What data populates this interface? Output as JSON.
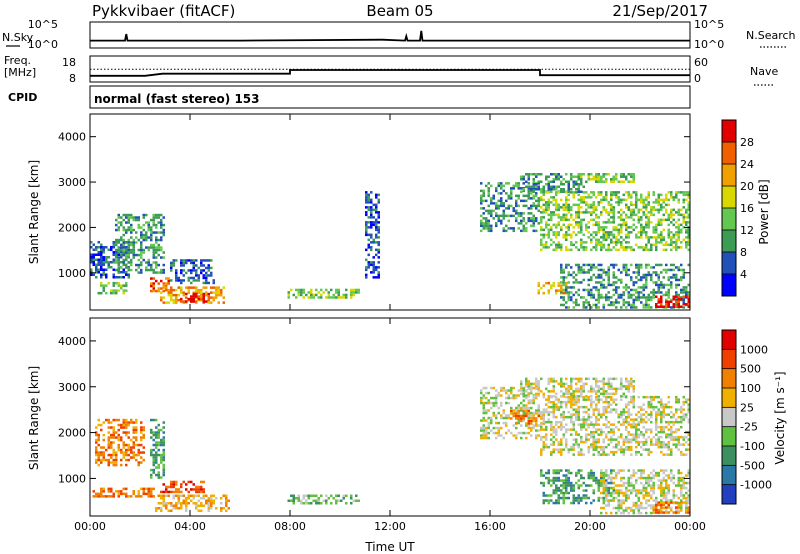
{
  "header": {
    "station": "Pykkvibaer (fitACF)",
    "beam": "Beam 05",
    "date": "21/Sep/2017"
  },
  "top_panels": {
    "nsky_label": "N.Sky",
    "nsky_ticks": [
      "10^5",
      "10^0"
    ],
    "nsearch_label": "N.Search",
    "nsearch_ticks": [
      "10^5",
      "10^0"
    ],
    "freq_label": "Freq.",
    "freq_unit": "[MHz]",
    "freq_ticks": [
      "18",
      "8"
    ],
    "nave_label": "Nave",
    "nave_ticks": [
      "60",
      "0"
    ],
    "cpid_label": "CPID",
    "cpid_text": "normal (fast stereo) 153"
  },
  "chart_data": [
    {
      "type": "line",
      "title": "",
      "panel": "noise",
      "x_unit": "hours UT",
      "series": [
        {
          "name": "N.Sky",
          "x": [
            0,
            1.4,
            1.45,
            1.5,
            6,
            11.7,
            12.6,
            12.65,
            12.7,
            13.2,
            13.25,
            13.3,
            24
          ],
          "values": [
            1.0,
            1.0,
            2.5,
            1.0,
            1.0,
            1.2,
            1.0,
            2.0,
            1.0,
            1.0,
            3.2,
            1.0,
            1.0
          ]
        }
      ]
    },
    {
      "type": "line",
      "title": "",
      "panel": "frequency",
      "x_unit": "hours UT",
      "series": [
        {
          "name": "Freq.",
          "x": [
            0,
            2.2,
            2.9,
            8.0,
            8.0,
            18.0,
            18.0,
            24
          ],
          "values": [
            10.4,
            10.4,
            11.2,
            11.2,
            12.6,
            12.6,
            10.6,
            10.6
          ]
        }
      ],
      "reference_lines": [
        {
          "name": "Nave",
          "value": 12.9
        }
      ]
    },
    {
      "type": "heatmap",
      "title": "",
      "panel": "power",
      "xlabel": "",
      "ylabel": "Slant Range [km]",
      "x_ticks": [
        "00:00",
        "04:00",
        "08:00",
        "12:00",
        "16:00",
        "20:00",
        "00:00"
      ],
      "y_ticks": [
        "1000",
        "2000",
        "3000",
        "4000"
      ],
      "xlim": [
        0,
        24
      ],
      "ylim": [
        180,
        4500
      ],
      "colorbar": {
        "label": "Power [dB]",
        "ticks": [
          "4",
          "8",
          "12",
          "16",
          "20",
          "24",
          "28"
        ],
        "colors": [
          "#0000ff",
          "#2050b8",
          "#3c9c54",
          "#64c850",
          "#d8d800",
          "#f0a000",
          "#f06000",
          "#e00000"
        ]
      },
      "regions": [
        {
          "x": [
            0.0,
            1.6
          ],
          "range": [
            900,
            1700
          ],
          "level": 1
        },
        {
          "x": [
            0.2,
            1.5
          ],
          "range": [
            550,
            800
          ],
          "level": 3
        },
        {
          "x": [
            1.0,
            3.0
          ],
          "range": [
            1000,
            2300
          ],
          "level": 2
        },
        {
          "x": [
            2.4,
            3.2
          ],
          "range": [
            600,
            900
          ],
          "level": 6
        },
        {
          "x": [
            2.8,
            5.4
          ],
          "range": [
            350,
            700
          ],
          "level": 5
        },
        {
          "x": [
            3.6,
            4.8
          ],
          "range": [
            380,
            560
          ],
          "level": 7
        },
        {
          "x": [
            3.2,
            5.0
          ],
          "range": [
            800,
            1300
          ],
          "level": 1
        },
        {
          "x": [
            7.9,
            10.8
          ],
          "range": [
            450,
            650
          ],
          "level": 3
        },
        {
          "x": [
            11.0,
            11.6
          ],
          "range": [
            900,
            2800
          ],
          "level": 1
        },
        {
          "x": [
            15.6,
            18.0
          ],
          "range": [
            1900,
            3000
          ],
          "level": 2
        },
        {
          "x": [
            17.2,
            19.8
          ],
          "range": [
            2800,
            3200
          ],
          "level": 2
        },
        {
          "x": [
            19.6,
            21.8
          ],
          "range": [
            3000,
            3200
          ],
          "level": 3
        },
        {
          "x": [
            18.0,
            24.0
          ],
          "range": [
            1500,
            2800
          ],
          "level": 3
        },
        {
          "x": [
            17.9,
            19.2
          ],
          "range": [
            550,
            800
          ],
          "level": 5
        },
        {
          "x": [
            18.8,
            24.0
          ],
          "range": [
            250,
            1200
          ],
          "level": 2
        },
        {
          "x": [
            22.6,
            24.0
          ],
          "range": [
            250,
            500
          ],
          "level": 7
        }
      ]
    },
    {
      "type": "heatmap",
      "title": "",
      "panel": "velocity",
      "xlabel": "Time UT",
      "ylabel": "Slant Range [km]",
      "x_ticks": [
        "00:00",
        "04:00",
        "08:00",
        "12:00",
        "16:00",
        "20:00",
        "00:00"
      ],
      "y_ticks": [
        "1000",
        "2000",
        "3000",
        "4000"
      ],
      "xlim": [
        0,
        24
      ],
      "ylim": [
        180,
        4500
      ],
      "colorbar": {
        "label": "Velocity [m s⁻¹]",
        "ticks": [
          "1000",
          "500",
          "100",
          "25",
          "-25",
          "-100",
          "-500",
          "-1000"
        ],
        "colors": [
          "#2040c0",
          "#2a78a8",
          "#3c9060",
          "#60c040",
          "#c8c8c8",
          "#f0b000",
          "#f08000",
          "#f04000",
          "#e00000"
        ]
      },
      "regions": [
        {
          "x": [
            0.2,
            2.2
          ],
          "range": [
            1300,
            2300
          ],
          "level": 6
        },
        {
          "x": [
            0.0,
            2.6
          ],
          "range": [
            600,
            800
          ],
          "level": 6
        },
        {
          "x": [
            2.6,
            5.6
          ],
          "range": [
            300,
            650
          ],
          "level": 5
        },
        {
          "x": [
            2.8,
            4.6
          ],
          "range": [
            700,
            950
          ],
          "level": 7
        },
        {
          "x": [
            2.4,
            3.0
          ],
          "range": [
            1000,
            2300
          ],
          "level": 2
        },
        {
          "x": [
            7.9,
            10.8
          ],
          "range": [
            450,
            650
          ],
          "level": 3
        },
        {
          "x": [
            15.6,
            18.0
          ],
          "range": [
            1900,
            3000
          ],
          "level": 4
        },
        {
          "x": [
            16.8,
            18.2
          ],
          "range": [
            2200,
            2500
          ],
          "level": 6
        },
        {
          "x": [
            17.2,
            21.8
          ],
          "range": [
            2800,
            3200
          ],
          "level": 4
        },
        {
          "x": [
            18.0,
            24.0
          ],
          "range": [
            1500,
            2800
          ],
          "level": 4
        },
        {
          "x": [
            18.0,
            21.0
          ],
          "range": [
            450,
            1200
          ],
          "level": 2
        },
        {
          "x": [
            20.4,
            24.0
          ],
          "range": [
            250,
            1200
          ],
          "level": 4
        },
        {
          "x": [
            22.5,
            24.0
          ],
          "range": [
            250,
            500
          ],
          "level": 6
        }
      ]
    }
  ]
}
